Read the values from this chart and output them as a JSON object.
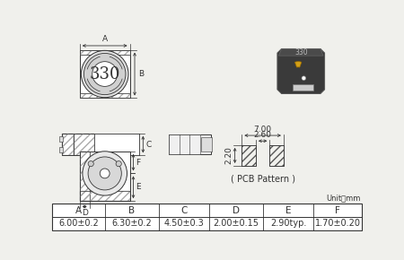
{
  "bg_color": "#f0f0ec",
  "table_headers": [
    "A",
    "B",
    "C",
    "D",
    "E",
    "F"
  ],
  "table_values": [
    "6.00±0.2",
    "6.30±0.2",
    "4.50±0.3",
    "2.00±0.15",
    "2.90typ.",
    "1.70±0.20"
  ],
  "unit_text": "Unit：mm",
  "pcb_label": "( PCB Pattern )",
  "dim_700": "7.00",
  "dim_260": "2.60",
  "dim_220": "2.20",
  "mark_330": "330",
  "dim_A": "A",
  "dim_B": "B",
  "dim_C": "C",
  "dim_D": "D",
  "dim_E": "E",
  "dim_F": "F"
}
